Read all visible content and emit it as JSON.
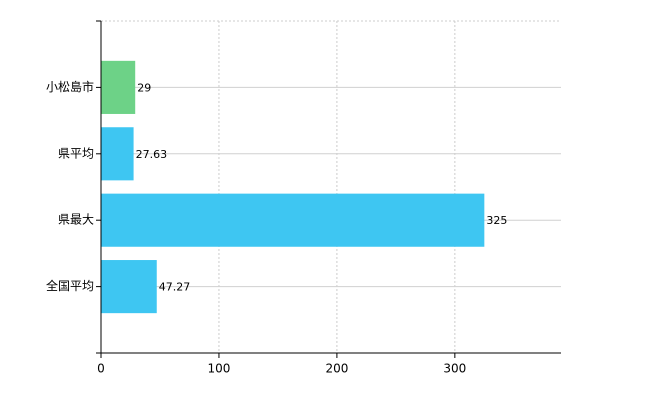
{
  "chart_data": {
    "type": "barh",
    "categories": [
      "小松島市",
      "県平均",
      "県最大",
      "全国平均"
    ],
    "values": [
      29,
      27.63,
      325,
      47.27
    ],
    "colors": [
      "#6dd287",
      "#3ec6f2",
      "#3ec6f2",
      "#3ec6f2"
    ],
    "xlim": [
      0,
      390
    ],
    "xticks": [
      0,
      100,
      200,
      300
    ],
    "grid": true
  }
}
